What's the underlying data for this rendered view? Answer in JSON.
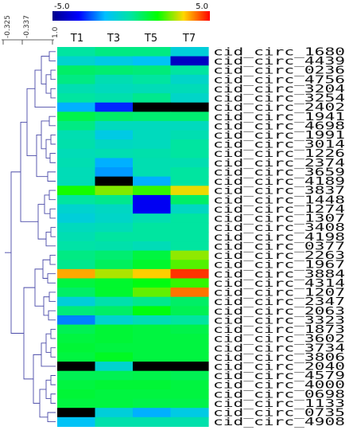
{
  "chart_data": {
    "type": "heatmap",
    "colorbar": {
      "min": -5.0,
      "max": 5.0,
      "min_label": "-5.0",
      "max_label": "5.0",
      "colors": [
        "#00008b",
        "#0000ff",
        "#00bfff",
        "#00e5a0",
        "#00ff00",
        "#ffd700",
        "#ff0000"
      ]
    },
    "dendrogram_ticks": [
      "-0.325",
      "-0.337",
      "1.0"
    ],
    "columns": [
      "T1",
      "T3",
      "T5",
      "T7"
    ],
    "rows": [
      "cid_circ_1680",
      "cid_circ_4439",
      "cid_circ_0236",
      "cid_circ_4756",
      "cid_circ_3204",
      "cid_circ_3254",
      "cid_circ_2402",
      "cid_circ_1941",
      "cid_circ_4698",
      "cid_circ_1991",
      "cid_circ_3014",
      "cid_circ_1226",
      "cid_circ_2374",
      "cid_circ_3659",
      "cid_circ_4189",
      "cid_circ_3837",
      "cid_circ_1448",
      "cid_circ_1274",
      "cid_circ_1307",
      "cid_circ_3408",
      "cid_circ_4198",
      "cid_circ_0377",
      "cid_circ_2263",
      "cid_circ_1967",
      "cid_circ_3884",
      "cid_circ_4314",
      "cid_circ_1207",
      "cid_circ_2347",
      "cid_circ_2063",
      "cid_circ_3323",
      "cid_circ_1873",
      "cid_circ_3602",
      "cid_circ_3734",
      "cid_circ_3806",
      "cid_circ_2040",
      "cid_circ_4579",
      "cid_circ_4000",
      "cid_circ_0698",
      "cid_circ_1133",
      "cid_circ_0735",
      "cid_circ_4908"
    ],
    "values": [
      [
        0.0,
        0.3,
        0.3,
        -1.0
      ],
      [
        -0.8,
        -1.2,
        -1.5,
        -4.2
      ],
      [
        0.6,
        0.5,
        0.4,
        0.0
      ],
      [
        0.3,
        -0.3,
        0.0,
        -0.7
      ],
      [
        -0.3,
        -0.5,
        -0.4,
        -0.4
      ],
      [
        0.0,
        -0.2,
        0.2,
        -0.7
      ],
      [
        -1.8,
        -3.0,
        null,
        null
      ],
      [
        0.9,
        0.6,
        0.5,
        0.5
      ],
      [
        0.3,
        -0.5,
        -0.5,
        -0.5
      ],
      [
        -0.3,
        -1.2,
        -0.5,
        -0.3
      ],
      [
        -0.2,
        -0.6,
        -0.5,
        0.0
      ],
      [
        -0.4,
        -0.3,
        -0.2,
        0.0
      ],
      [
        -0.3,
        -1.8,
        -0.3,
        -0.3
      ],
      [
        -0.4,
        -2.0,
        -0.3,
        0.0
      ],
      [
        -0.4,
        null,
        -1.8,
        0.0
      ],
      [
        1.8,
        2.5,
        2.0,
        3.2
      ],
      [
        0.0,
        0.2,
        -3.5,
        0.6
      ],
      [
        -0.8,
        -0.6,
        -3.5,
        -0.6
      ],
      [
        -1.0,
        -0.7,
        -0.3,
        0.0
      ],
      [
        -0.5,
        -0.4,
        0.0,
        0.0
      ],
      [
        -0.3,
        0.0,
        0.0,
        0.0
      ],
      [
        -0.1,
        -0.2,
        -0.4,
        0.0
      ],
      [
        0.3,
        0.5,
        1.0,
        2.6
      ],
      [
        0.2,
        0.7,
        1.2,
        2.2
      ],
      [
        3.7,
        2.8,
        3.4,
        4.6
      ],
      [
        1.0,
        1.2,
        1.5,
        2.0
      ],
      [
        0.6,
        1.2,
        2.3,
        4.1
      ],
      [
        -1.0,
        -0.2,
        0.2,
        0.6
      ],
      [
        0.4,
        0.6,
        1.5,
        0.8
      ],
      [
        -2.2,
        -0.8,
        -0.4,
        0.0
      ],
      [
        0.8,
        1.1,
        1.0,
        0.9
      ],
      [
        1.0,
        1.1,
        1.0,
        1.0
      ],
      [
        1.1,
        1.0,
        1.0,
        1.0
      ],
      [
        1.0,
        1.3,
        1.0,
        1.0
      ],
      [
        null,
        -0.8,
        null,
        null
      ],
      [
        0.8,
        0.8,
        0.9,
        0.8
      ],
      [
        1.0,
        1.1,
        1.1,
        1.0
      ],
      [
        1.1,
        1.0,
        1.0,
        1.0
      ],
      [
        1.0,
        1.0,
        0.9,
        0.9
      ],
      [
        null,
        -1.0,
        -1.8,
        -1.2
      ],
      [
        -1.5,
        -0.2,
        -0.2,
        -0.2
      ]
    ],
    "missing_color": "#000000",
    "dendrogram_side": "left"
  }
}
